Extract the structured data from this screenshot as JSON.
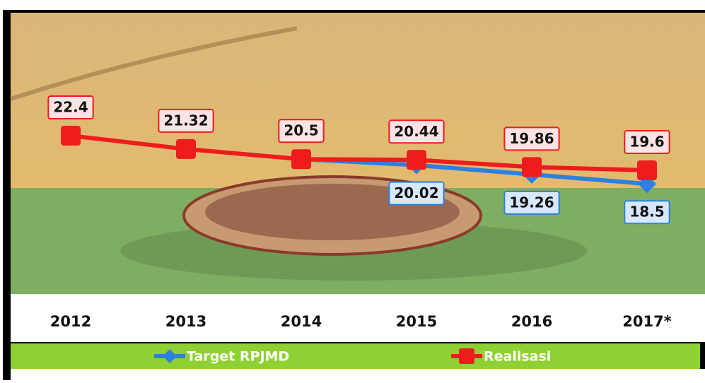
{
  "chart_data": {
    "type": "line",
    "categories": [
      "2012",
      "2013",
      "2014",
      "2015",
      "2016",
      "2017*"
    ],
    "series": [
      {
        "name": "Target RPJMD",
        "color": "#2e7fe0",
        "values": [
          null,
          null,
          20.5,
          20.02,
          19.26,
          18.5
        ],
        "value_labels": [
          null,
          null,
          null,
          "20.02",
          "19.26",
          "18.5"
        ],
        "label_position": "below"
      },
      {
        "name": "Realisasi",
        "color": "#ee1c1c",
        "values": [
          22.4,
          21.32,
          20.5,
          20.44,
          19.86,
          19.6
        ],
        "label_position": "above"
      }
    ],
    "ylim": [
      10.5,
      31.1
    ],
    "legend": "bottom"
  }
}
